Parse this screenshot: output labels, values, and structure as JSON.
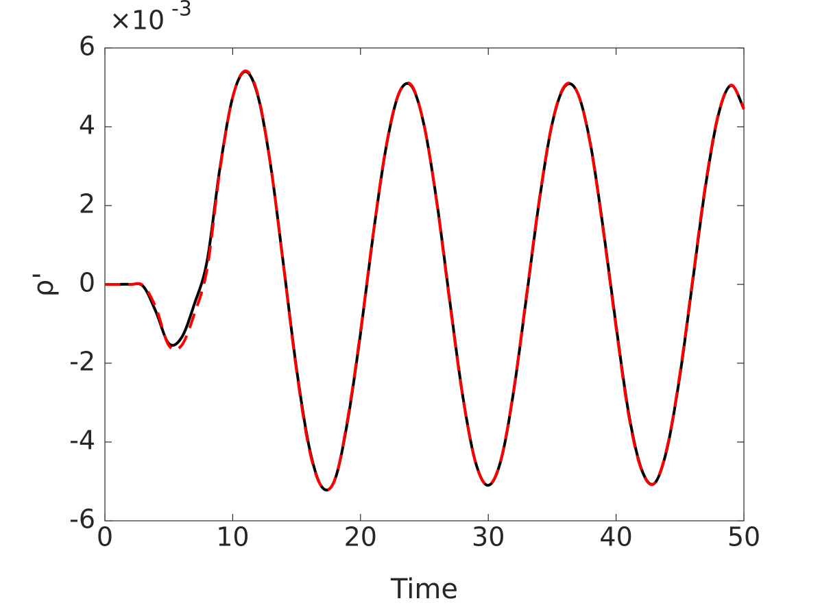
{
  "chart_data": {
    "type": "line",
    "x_label": "Time",
    "y_label": "ρ'",
    "y_multiplier": "×10",
    "y_exponent": "-3",
    "x": [
      0,
      1,
      2,
      3,
      4,
      5,
      6,
      7,
      8,
      9,
      10,
      11,
      12,
      13,
      14,
      15,
      16,
      17,
      18,
      19,
      20,
      21,
      22,
      23,
      24,
      25,
      26,
      27,
      28,
      29,
      30,
      31,
      32,
      33,
      34,
      35,
      36,
      37,
      38,
      39,
      40,
      41,
      42,
      43,
      44,
      45,
      46,
      47,
      48,
      49,
      50
    ],
    "series": [
      {
        "color": "#000000",
        "dash": "solid",
        "values": [
          0,
          0,
          0,
          -0.05,
          -0.7,
          -1.5,
          -1.35,
          -0.5,
          0.6,
          2.95,
          4.75,
          5.4,
          4.75,
          2.95,
          0.43,
          -2.15,
          -4.15,
          -5.15,
          -4.95,
          -3.45,
          -1.25,
          1.28,
          3.47,
          4.84,
          5.03,
          4.0,
          2.03,
          -0.45,
          -2.83,
          -4.51,
          -5.1,
          -4.45,
          -2.68,
          -0.29,
          2.14,
          4.08,
          5.03,
          4.85,
          3.55,
          1.4,
          -1.05,
          -3.3,
          -4.7,
          -5.05,
          -4.15,
          -2.3,
          0.1,
          2.5,
          4.3,
          5.05,
          4.45
        ]
      },
      {
        "color": "#ff0000",
        "dash": "dashed",
        "values": [
          0,
          0,
          0,
          -0.03,
          -0.6,
          -1.55,
          -1.55,
          -0.75,
          0.4,
          2.9,
          4.75,
          5.42,
          4.78,
          2.95,
          0.4,
          -2.2,
          -4.2,
          -5.15,
          -4.95,
          -3.4,
          -1.2,
          1.3,
          3.5,
          4.85,
          5.05,
          4.0,
          2.0,
          -0.5,
          -2.85,
          -4.52,
          -5.1,
          -4.43,
          -2.65,
          -0.25,
          2.18,
          4.1,
          5.05,
          4.85,
          3.52,
          1.35,
          -1.1,
          -3.35,
          -4.72,
          -5.05,
          -4.12,
          -2.25,
          0.15,
          2.55,
          4.32,
          5.06,
          4.45
        ]
      }
    ],
    "xlim": [
      0,
      50
    ],
    "xticks": [
      0,
      10,
      20,
      30,
      40,
      50
    ],
    "ylim": [
      -6,
      6
    ],
    "yticks": [
      -6,
      -4,
      -2,
      0,
      2,
      4,
      6
    ],
    "grid": false
  }
}
